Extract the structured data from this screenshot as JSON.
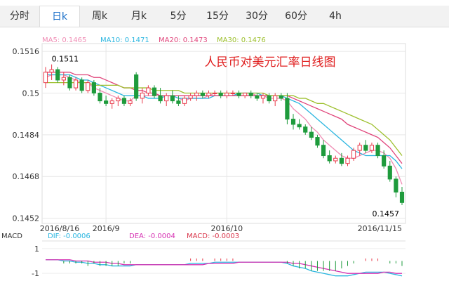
{
  "tabs": {
    "items": [
      "分时",
      "日k",
      "周k",
      "月k",
      "5分",
      "15分",
      "30分",
      "60分",
      "4h"
    ],
    "selected": 1
  },
  "chart_data": [
    {
      "type": "candlestick",
      "title": "人民币对美元汇率日线图",
      "categories": [
        "2016/8/16",
        null,
        null,
        null,
        null,
        null,
        null,
        null,
        null,
        null,
        "2016/9",
        null,
        null,
        null,
        null,
        null,
        null,
        null,
        null,
        null,
        null,
        null,
        null,
        null,
        null,
        null,
        null,
        null,
        null,
        null,
        "2016/10",
        null,
        null,
        null,
        null,
        null,
        null,
        null,
        null,
        null,
        null,
        null,
        null,
        null,
        null,
        null,
        null,
        null,
        null,
        null,
        null,
        null,
        null,
        null,
        null,
        null,
        null,
        null,
        null,
        "2016/11/15"
      ],
      "candles": [
        [
          0.1504,
          0.151,
          0.1502,
          0.1508
        ],
        [
          0.1508,
          0.1511,
          0.1505,
          0.1509
        ],
        [
          0.1509,
          0.151,
          0.1504,
          0.1505
        ],
        [
          0.1505,
          0.1508,
          0.1503,
          0.1506
        ],
        [
          0.1506,
          0.1507,
          0.1501,
          0.1502
        ],
        [
          0.1502,
          0.1506,
          0.1501,
          0.1505
        ],
        [
          0.1505,
          0.1506,
          0.15,
          0.1501
        ],
        [
          0.1501,
          0.1505,
          0.15,
          0.1504
        ],
        [
          0.1504,
          0.1505,
          0.1499,
          0.15
        ],
        [
          0.15,
          0.1502,
          0.1496,
          0.1497
        ],
        [
          0.1497,
          0.1499,
          0.1495,
          0.1496
        ],
        [
          0.1496,
          0.1498,
          0.1494,
          0.1497
        ],
        [
          0.1497,
          0.1499,
          0.1495,
          0.1498
        ],
        [
          0.1498,
          0.1499,
          0.1495,
          0.1496
        ],
        [
          0.1496,
          0.1498,
          0.1495,
          0.1497
        ],
        [
          0.1507,
          0.1508,
          0.1497,
          0.1498
        ],
        [
          0.1498,
          0.1502,
          0.1496,
          0.15
        ],
        [
          0.15,
          0.1503,
          0.1499,
          0.1502
        ],
        [
          0.1502,
          0.1503,
          0.1498,
          0.1499
        ],
        [
          0.1499,
          0.1502,
          0.1496,
          0.1497
        ],
        [
          0.1497,
          0.15,
          0.1495,
          0.1499
        ],
        [
          0.1499,
          0.1501,
          0.1496,
          0.1497
        ],
        [
          0.1497,
          0.1499,
          0.1495,
          0.1496
        ],
        [
          0.1496,
          0.1499,
          0.1495,
          0.1498
        ],
        [
          0.1498,
          0.15,
          0.1497,
          0.1499
        ],
        [
          0.1499,
          0.1501,
          0.1497,
          0.15
        ],
        [
          0.15,
          0.1501,
          0.1498,
          0.1499
        ],
        [
          0.1499,
          0.1501,
          0.1498,
          0.15
        ],
        [
          0.15,
          0.1501,
          0.1499,
          0.15
        ],
        [
          0.15,
          0.1501,
          0.1498,
          0.1499
        ],
        [
          0.1499,
          0.1501,
          0.1498,
          0.15
        ],
        [
          0.15,
          0.1501,
          0.1499,
          0.15
        ],
        [
          0.15,
          0.1501,
          0.1498,
          0.1499
        ],
        [
          0.1499,
          0.15,
          0.1498,
          0.15
        ],
        [
          0.15,
          0.1501,
          0.1498,
          0.1499
        ],
        [
          0.1499,
          0.15,
          0.1497,
          0.1498
        ],
        [
          0.1498,
          0.15,
          0.1496,
          0.1499
        ],
        [
          0.1499,
          0.15,
          0.1496,
          0.1497
        ],
        [
          0.1497,
          0.15,
          0.1495,
          0.1499
        ],
        [
          0.1499,
          0.15,
          0.1497,
          0.1498
        ],
        [
          0.1498,
          0.15,
          0.1488,
          0.149
        ],
        [
          0.149,
          0.1492,
          0.1486,
          0.1488
        ],
        [
          0.1488,
          0.149,
          0.1486,
          0.1487
        ],
        [
          0.1487,
          0.1488,
          0.1484,
          0.1485
        ],
        [
          0.1485,
          0.1487,
          0.1482,
          0.1483
        ],
        [
          0.1483,
          0.1484,
          0.1479,
          0.148
        ],
        [
          0.148,
          0.1482,
          0.1475,
          0.1476
        ],
        [
          0.1476,
          0.1478,
          0.1473,
          0.1474
        ],
        [
          0.1474,
          0.1476,
          0.1473,
          0.1475
        ],
        [
          0.1475,
          0.1477,
          0.1472,
          0.1473
        ],
        [
          0.1473,
          0.1476,
          0.1472,
          0.1475
        ],
        [
          0.1475,
          0.1479,
          0.1474,
          0.1478
        ],
        [
          0.1478,
          0.1481,
          0.1476,
          0.148
        ],
        [
          0.148,
          0.1482,
          0.1477,
          0.1478
        ],
        [
          0.1478,
          0.1481,
          0.1477,
          0.148
        ],
        [
          0.148,
          0.1481,
          0.1475,
          0.1476
        ],
        [
          0.1476,
          0.1478,
          0.1471,
          0.1472
        ],
        [
          0.1472,
          0.1474,
          0.1466,
          0.1467
        ],
        [
          0.1467,
          0.1468,
          0.146,
          0.1462
        ],
        [
          0.1462,
          0.1464,
          0.1457,
          0.1458
        ]
      ],
      "up_color": "#e8394a",
      "down_color": "#1e9b3c",
      "series": [
        {
          "label": "MA5: 0.1465",
          "color": "#f08cb4",
          "values": [
            0.1506,
            0.1507,
            0.1507,
            0.1507,
            0.1506,
            0.1505,
            0.1504,
            0.1504,
            0.1502,
            0.1501,
            0.15,
            0.1499,
            0.1498,
            0.1497,
            0.1497,
            0.1499,
            0.1499,
            0.1499,
            0.1499,
            0.1499,
            0.1499,
            0.1499,
            0.1498,
            0.1497,
            0.1498,
            0.1498,
            0.1498,
            0.1499,
            0.15,
            0.15,
            0.15,
            0.15,
            0.15,
            0.15,
            0.15,
            0.1499,
            0.1499,
            0.1498,
            0.1498,
            0.1498,
            0.1497,
            0.1494,
            0.1492,
            0.149,
            0.1487,
            0.1485,
            0.1482,
            0.148,
            0.1478,
            0.1476,
            0.1475,
            0.1475,
            0.1476,
            0.1477,
            0.1478,
            0.1478,
            0.1477,
            0.1475,
            0.1471,
            0.1465
          ]
        },
        {
          "label": "MA10: 0.1471",
          "color": "#2bb6e0",
          "values": [
            0.1507,
            0.1507,
            0.1507,
            0.1507,
            0.1507,
            0.1506,
            0.1505,
            0.1505,
            0.1504,
            0.1503,
            0.1502,
            0.1501,
            0.15,
            0.1499,
            0.1499,
            0.1499,
            0.1499,
            0.1498,
            0.1498,
            0.1498,
            0.1499,
            0.1499,
            0.1498,
            0.1498,
            0.1498,
            0.1498,
            0.1498,
            0.1498,
            0.1499,
            0.1499,
            0.1499,
            0.1499,
            0.15,
            0.15,
            0.15,
            0.15,
            0.1499,
            0.1499,
            0.1499,
            0.1499,
            0.1498,
            0.1497,
            0.1496,
            0.1494,
            0.1492,
            0.149,
            0.1488,
            0.1486,
            0.1484,
            0.1482,
            0.148,
            0.1478,
            0.1477,
            0.1476,
            0.1476,
            0.1476,
            0.1476,
            0.1476,
            0.1474,
            0.1471
          ]
        },
        {
          "label": "MA20: 0.1473",
          "color": "#e0457b",
          "values": [
            0.1508,
            0.1508,
            0.1508,
            0.1508,
            0.1508,
            0.1507,
            0.1507,
            0.1507,
            0.1506,
            0.1506,
            0.1505,
            0.1504,
            0.1503,
            0.1502,
            0.1502,
            0.1501,
            0.1501,
            0.15,
            0.15,
            0.1499,
            0.1499,
            0.1499,
            0.1499,
            0.1499,
            0.1499,
            0.1499,
            0.1499,
            0.1499,
            0.1499,
            0.1499,
            0.1499,
            0.1499,
            0.1499,
            0.1499,
            0.1499,
            0.1499,
            0.1499,
            0.1499,
            0.1499,
            0.1499,
            0.1499,
            0.1498,
            0.1497,
            0.1496,
            0.1495,
            0.1494,
            0.1493,
            0.1492,
            0.1491,
            0.149,
            0.1488,
            0.1487,
            0.1486,
            0.1485,
            0.1484,
            0.1483,
            0.1481,
            0.1479,
            0.1476,
            0.1473
          ]
        },
        {
          "label": "MA30: 0.1476",
          "color": "#9cbf2b",
          "values": [
            0.1504,
            0.1504,
            0.1504,
            0.1504,
            0.1504,
            0.1504,
            0.1504,
            0.1504,
            0.1503,
            0.1503,
            0.1503,
            0.1503,
            0.1503,
            0.1502,
            0.1502,
            0.1502,
            0.1502,
            0.1502,
            0.1501,
            0.1501,
            0.1501,
            0.1501,
            0.1501,
            0.15,
            0.15,
            0.15,
            0.15,
            0.15,
            0.15,
            0.15,
            0.15,
            0.15,
            0.15,
            0.15,
            0.15,
            0.15,
            0.15,
            0.1499,
            0.1499,
            0.1499,
            0.1499,
            0.1499,
            0.1498,
            0.1498,
            0.1497,
            0.1496,
            0.1496,
            0.1495,
            0.1494,
            0.1493,
            0.1492,
            0.1491,
            0.149,
            0.1489,
            0.1488,
            0.1486,
            0.1484,
            0.1482,
            0.1479,
            0.1476
          ]
        }
      ],
      "annotations": [
        0.1511,
        0.1457
      ],
      "ylim": [
        0.145,
        0.1519
      ],
      "yticks": [
        0.1516,
        0.15,
        0.1484,
        0.1468,
        0.1452
      ],
      "grid": true
    },
    {
      "type": "macd",
      "label": "MACD",
      "up_color": "#e8394a",
      "down_color": "#1e9b3c",
      "series": [
        {
          "label": "DIF: -0.0006",
          "color": "#2bb6e0",
          "kind": "line",
          "values": [
            0.1,
            0.1,
            0.1,
            0.0,
            0.0,
            -0.1,
            -0.1,
            -0.2,
            -0.2,
            -0.3,
            -0.3,
            -0.4,
            -0.4,
            -0.4,
            -0.4,
            -0.3,
            -0.3,
            -0.3,
            -0.3,
            -0.3,
            -0.3,
            -0.3,
            -0.3,
            -0.3,
            -0.2,
            -0.2,
            -0.2,
            -0.2,
            -0.1,
            -0.1,
            -0.1,
            -0.1,
            -0.1,
            -0.1,
            -0.1,
            -0.1,
            -0.1,
            -0.1,
            -0.1,
            -0.1,
            -0.2,
            -0.4,
            -0.5,
            -0.6,
            -0.8,
            -0.9,
            -1.0,
            -1.1,
            -1.2,
            -1.2,
            -1.2,
            -1.1,
            -1.0,
            -0.9,
            -0.9,
            -0.9,
            -0.9,
            -1.0,
            -1.1,
            -1.2
          ]
        },
        {
          "label": "DEA: -0.0004",
          "color": "#d633b3",
          "kind": "line",
          "values": [
            0.1,
            0.1,
            0.1,
            0.1,
            0.1,
            0.0,
            0.0,
            0.0,
            -0.1,
            -0.1,
            -0.1,
            -0.2,
            -0.2,
            -0.3,
            -0.3,
            -0.3,
            -0.3,
            -0.3,
            -0.3,
            -0.3,
            -0.3,
            -0.3,
            -0.3,
            -0.3,
            -0.3,
            -0.3,
            -0.3,
            -0.2,
            -0.2,
            -0.2,
            -0.2,
            -0.2,
            -0.1,
            -0.1,
            -0.1,
            -0.1,
            -0.1,
            -0.1,
            -0.1,
            -0.1,
            -0.1,
            -0.2,
            -0.2,
            -0.3,
            -0.4,
            -0.5,
            -0.6,
            -0.7,
            -0.8,
            -0.9,
            -1.0,
            -1.0,
            -1.0,
            -1.0,
            -1.0,
            -1.0,
            -0.9,
            -0.9,
            -1.0,
            -1.0
          ]
        },
        {
          "label": "MACD: -0.0003",
          "color": "#d9354a",
          "kind": "bar",
          "values": [
            0,
            0,
            0,
            -0.2,
            -0.2,
            -0.2,
            -0.2,
            -0.4,
            -0.2,
            -0.4,
            -0.4,
            -0.4,
            -0.4,
            -0.2,
            -0.2,
            0,
            0,
            0,
            0,
            0,
            0,
            0,
            0,
            0,
            0.2,
            0.2,
            0.2,
            0,
            0.2,
            0.2,
            0.2,
            0.2,
            0,
            0,
            0,
            0,
            0,
            0,
            0,
            0,
            -0.2,
            -0.4,
            -0.6,
            -0.6,
            -0.8,
            -0.8,
            -0.8,
            -0.8,
            -0.8,
            -0.6,
            -0.4,
            -0.2,
            0,
            0.2,
            0.2,
            0.2,
            0,
            -0.2,
            -0.2,
            -0.4
          ]
        }
      ],
      "ylim": [
        -1.5,
        1.5
      ],
      "yticks": [
        1,
        -1
      ]
    }
  ]
}
